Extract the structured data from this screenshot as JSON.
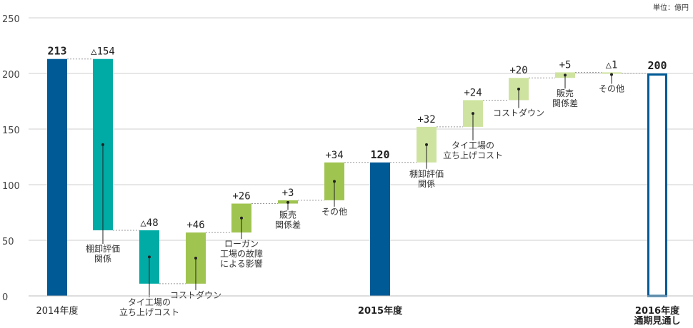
{
  "chart_data": {
    "type": "waterfall",
    "unit": "単位：億円",
    "y_ticks": [
      0,
      50,
      100,
      150,
      200,
      250
    ],
    "ylim": [
      0,
      250
    ],
    "grid": true,
    "colors": {
      "total": "#005a96",
      "negative": "#00aaa5",
      "positive_2015": "#a0c450",
      "positive_2016": "#cfe3a0"
    },
    "bars": [
      {
        "kind": "total",
        "value": 213,
        "value_label": "213",
        "base": 0,
        "top": 213,
        "category": "2014年度",
        "category_style": "normal"
      },
      {
        "kind": "negative",
        "value": -154,
        "value_label": "△154",
        "base": 59,
        "top": 213,
        "annotation": "棚卸評価\n関係"
      },
      {
        "kind": "negative",
        "value": -48,
        "value_label": "△48",
        "base": 11,
        "top": 59,
        "annotation": "タイ工場の\n立ち上げコスト"
      },
      {
        "kind": "positive_2015",
        "value": 46,
        "value_label": "+46",
        "base": 11,
        "top": 57,
        "annotation": "コストダウン"
      },
      {
        "kind": "positive_2015",
        "value": 26,
        "value_label": "+26",
        "base": 57,
        "top": 83,
        "annotation": "ローガン\n工場の故障\nによる影響"
      },
      {
        "kind": "positive_2015",
        "value": 3,
        "value_label": "+3",
        "base": 83,
        "top": 86,
        "annotation": "販売\n関係差"
      },
      {
        "kind": "positive_2015",
        "value": 34,
        "value_label": "+34",
        "base": 86,
        "top": 120,
        "annotation": "その他"
      },
      {
        "kind": "total",
        "value": 120,
        "value_label": "120",
        "base": 0,
        "top": 120,
        "category": "2015年度",
        "category_style": "bold"
      },
      {
        "kind": "positive_2016",
        "value": 32,
        "value_label": "+32",
        "base": 120,
        "top": 152,
        "annotation": "棚卸評価\n関係"
      },
      {
        "kind": "positive_2016",
        "value": 24,
        "value_label": "+24",
        "base": 152,
        "top": 176,
        "annotation": "タイ工場の\n立ち上げコスト"
      },
      {
        "kind": "positive_2016",
        "value": 20,
        "value_label": "+20",
        "base": 176,
        "top": 196,
        "annotation": "コストダウン"
      },
      {
        "kind": "positive_2016",
        "value": 5,
        "value_label": "+5",
        "base": 196,
        "top": 201,
        "annotation": "販売\n関係差"
      },
      {
        "kind": "positive_2016",
        "value": -1,
        "value_label": "△1",
        "base": 200,
        "top": 201,
        "annotation": "その他"
      },
      {
        "kind": "forecast",
        "value": 200,
        "value_label": "200",
        "base": 0,
        "top": 200,
        "category": "2016年度\n通期見通し",
        "category_style": "bold"
      }
    ]
  }
}
